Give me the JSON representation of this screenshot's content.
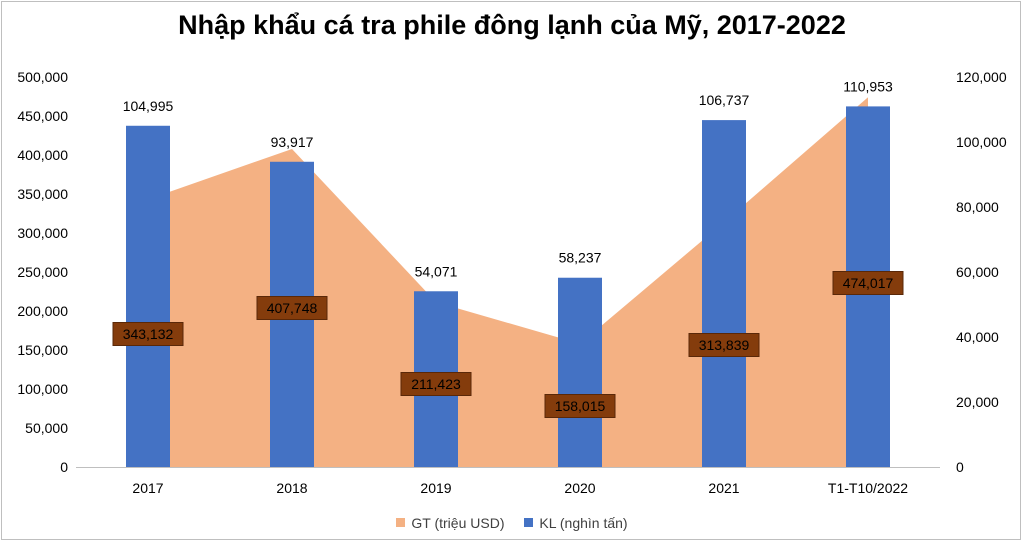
{
  "chart_data": {
    "type": "bar",
    "title": "Nhập khẩu cá tra phile đông lạnh của Mỹ, 2017-2022",
    "categories": [
      "2017",
      "2018",
      "2019",
      "2020",
      "2021",
      "T1-T10/2022"
    ],
    "series": [
      {
        "name": "GT (triệu USD)",
        "chart_type": "area",
        "axis": "left",
        "color": "#f4b183",
        "values": [
          343132,
          407748,
          211423,
          158015,
          313839,
          474017
        ],
        "labels": [
          "343,132",
          "407,748",
          "211,423",
          "158,015",
          "313,839",
          "474,017"
        ]
      },
      {
        "name": "KL (nghìn tấn)",
        "chart_type": "bar",
        "axis": "right",
        "color": "#4472c4",
        "values": [
          104995,
          93917,
          54071,
          58237,
          106737,
          110953
        ],
        "labels": [
          "104,995",
          "93,917",
          "54,071",
          "58,237",
          "106,737",
          "110,953"
        ]
      }
    ],
    "y_left": {
      "range": [
        0,
        500000
      ],
      "ticks": [
        0,
        50000,
        100000,
        150000,
        200000,
        250000,
        300000,
        350000,
        400000,
        450000,
        500000
      ],
      "tick_labels": [
        "0",
        "50,000",
        "100,000",
        "150,000",
        "200,000",
        "250,000",
        "300,000",
        "350,000",
        "400,000",
        "450,000",
        "500,000"
      ]
    },
    "y_right": {
      "range": [
        0,
        120000
      ],
      "ticks": [
        0,
        20000,
        40000,
        60000,
        80000,
        100000,
        120000
      ],
      "tick_labels": [
        "0",
        "20,000",
        "40,000",
        "60,000",
        "80,000",
        "100,000",
        "120,000"
      ]
    },
    "grid": false,
    "legend_position": "bottom",
    "data_label_box_color": "#843c0c"
  }
}
